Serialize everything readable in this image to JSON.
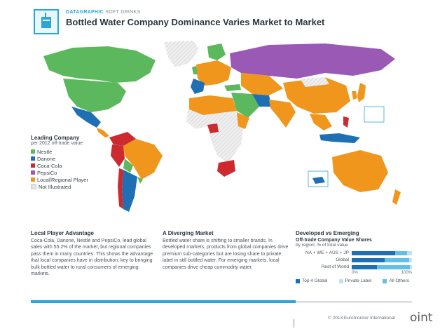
{
  "header": {
    "brand": "DATAGRAPHIC",
    "brand_sub": "SOFT DRINKS",
    "title": "Bottled Water Company Dominance Varies Market to Market"
  },
  "legend": {
    "title": "Leading Company",
    "subtitle": "per 2012 off-trade value",
    "items": [
      {
        "label": "Nestlé",
        "color": "#5cb85c"
      },
      {
        "label": "Danone",
        "color": "#1e6fb3"
      },
      {
        "label": "Coca-Cola",
        "color": "#cc2a2f"
      },
      {
        "label": "PepsiCo",
        "color": "#9b59b6"
      },
      {
        "label": "Local/Regional Player",
        "color": "#f0961d"
      },
      {
        "label": "Not Illustrated",
        "color": "#e3e3e3"
      }
    ]
  },
  "sections": {
    "local": {
      "heading": "Local Player Advantage",
      "body": "Coca-Cola, Danone, Nestlé and PepsiCo, lead global sales with 55.2% of the market, but regional companies pass them in many countries. This shows the advantage that local companies have in distribution, key to bringing bulk bottled water to rural consumers of emerging markets."
    },
    "diverging": {
      "heading": "A Diverging Market",
      "body": "Bottled water share is shifting to smaller brands. In developed markets, products from global companies drive premium sub-categories but are losing share to private label in still bottled water. For emerging markets, local companies drive cheap commodity water."
    },
    "developed": {
      "heading": "Developed vs Emerging",
      "chart_title": "Off-trade Company Value Shares",
      "chart_sub": "by region; % of total value",
      "axis_min": "0%",
      "axis_max": "100%",
      "legend_top4": "Top 4 Global",
      "legend_private": "Private Label",
      "legend_others": "All Others"
    }
  },
  "chart_data": {
    "type": "bar",
    "orientation": "horizontal",
    "stacked": true,
    "categories": [
      "NA + WE + AUS + JP",
      "Global",
      "Rest of World"
    ],
    "series": [
      {
        "name": "Top 4 Global",
        "color": "#1e6fb3",
        "values": [
          72,
          55,
          42
        ]
      },
      {
        "name": "All Others",
        "color": "#62c0e6",
        "values": [
          20,
          40,
          55
        ]
      },
      {
        "name": "Private Label",
        "color": "#bfe3f3",
        "values": [
          8,
          5,
          3
        ]
      }
    ],
    "xlim": [
      0,
      100
    ]
  },
  "footer": {
    "copyright": "© 2013 Euromonitor International",
    "overflow_text": "oint"
  }
}
